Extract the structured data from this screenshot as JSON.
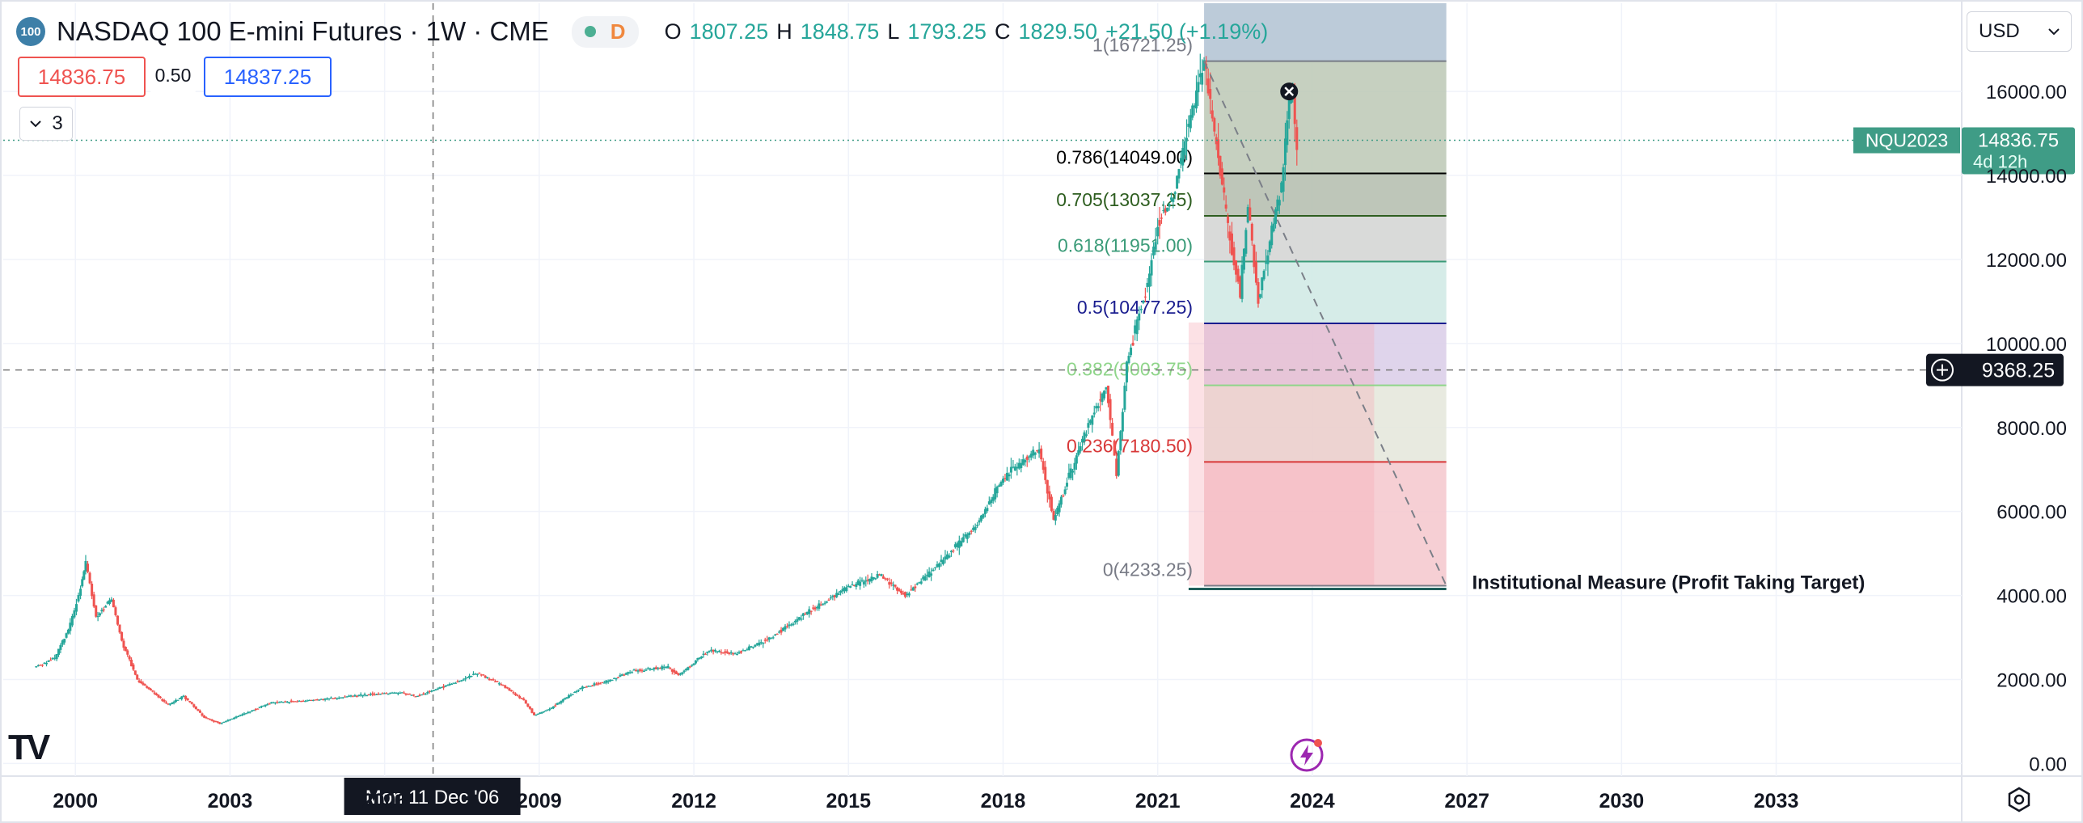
{
  "header": {
    "symbol_badge": "100",
    "title": "NASDAQ 100 E-mini Futures · 1W · CME",
    "status_letter": "D",
    "ohlc": {
      "o_label": "O",
      "o_value": "1807.25",
      "h_label": "H",
      "h_value": "1848.75",
      "l_label": "L",
      "l_value": "1793.25",
      "c_label": "C",
      "c_value": "1829.50",
      "change": "+21.50 (+1.19%)"
    }
  },
  "quote": {
    "bid": "14836.75",
    "spread": "0.50",
    "ask": "14837.25"
  },
  "indicator_toggle": {
    "count": "3"
  },
  "currency": "USD",
  "colors": {
    "up": "#26a69a",
    "down": "#ef5350",
    "accent": "#2962ff",
    "price_label": "#3f9c86"
  },
  "chart_data": {
    "type": "candlestick",
    "interval": "1W",
    "y_axis": {
      "ticks": [
        "16000.00",
        "14000.00",
        "12000.00",
        "10000.00",
        "8000.00",
        "6000.00",
        "4000.00",
        "2000.00",
        "0.00"
      ],
      "range": [
        -300,
        18100
      ]
    },
    "x_axis": {
      "ticks": [
        "2000",
        "2003",
        "2006",
        "2009",
        "2012",
        "2015",
        "2018",
        "2021",
        "2024",
        "2027",
        "2030",
        "2033"
      ],
      "range": [
        1998.6,
        2036.6
      ]
    },
    "price_path": [
      [
        1999.2,
        2300
      ],
      [
        1999.6,
        2500
      ],
      [
        1999.9,
        3300
      ],
      [
        2000.1,
        4200
      ],
      [
        2000.2,
        4800
      ],
      [
        2000.4,
        3500
      ],
      [
        2000.7,
        3900
      ],
      [
        2000.9,
        2900
      ],
      [
        2001.2,
        2000
      ],
      [
        2001.5,
        1700
      ],
      [
        2001.8,
        1400
      ],
      [
        2002.1,
        1600
      ],
      [
        2002.5,
        1100
      ],
      [
        2002.8,
        950
      ],
      [
        2003.2,
        1150
      ],
      [
        2003.8,
        1450
      ],
      [
        2004.5,
        1500
      ],
      [
        2005.5,
        1620
      ],
      [
        2006.3,
        1700
      ],
      [
        2006.6,
        1600
      ],
      [
        2007.3,
        1900
      ],
      [
        2007.8,
        2150
      ],
      [
        2008.3,
        1850
      ],
      [
        2008.7,
        1500
      ],
      [
        2008.9,
        1150
      ],
      [
        2009.2,
        1300
      ],
      [
        2009.8,
        1800
      ],
      [
        2010.3,
        1950
      ],
      [
        2010.8,
        2200
      ],
      [
        2011.5,
        2300
      ],
      [
        2011.7,
        2100
      ],
      [
        2012.3,
        2700
      ],
      [
        2012.8,
        2600
      ],
      [
        2013.5,
        3000
      ],
      [
        2014.2,
        3600
      ],
      [
        2015.0,
        4200
      ],
      [
        2015.6,
        4500
      ],
      [
        2016.1,
        4000
      ],
      [
        2016.8,
        4800
      ],
      [
        2017.5,
        5700
      ],
      [
        2018.0,
        6800
      ],
      [
        2018.7,
        7500
      ],
      [
        2018.98,
        5800
      ],
      [
        2019.5,
        7600
      ],
      [
        2020.0,
        9000
      ],
      [
        2020.2,
        6900
      ],
      [
        2020.4,
        9500
      ],
      [
        2020.8,
        11500
      ],
      [
        2021.0,
        12800
      ],
      [
        2021.3,
        13500
      ],
      [
        2021.6,
        15200
      ],
      [
        2021.9,
        16721
      ],
      [
        2022.1,
        15000
      ],
      [
        2022.4,
        12500
      ],
      [
        2022.6,
        11200
      ],
      [
        2022.75,
        13300
      ],
      [
        2022.95,
        11000
      ],
      [
        2023.1,
        12000
      ],
      [
        2023.4,
        13800
      ],
      [
        2023.55,
        15700
      ],
      [
        2023.62,
        15900
      ],
      [
        2023.7,
        14836
      ]
    ],
    "last_price": {
      "symbol": "NQU2023",
      "value": "14836.75",
      "countdown": "4d 12h"
    },
    "crosshair": {
      "price": "9368.25",
      "date_label": "Mon 11 Dec '06",
      "x": 2006.94,
      "y": 9368.25
    },
    "fibonacci": {
      "levels": [
        {
          "ratio": "1",
          "price": 16721.25,
          "label": "1(16721.25)",
          "color": "#787b86"
        },
        {
          "ratio": "0.786",
          "price": 14049.0,
          "label": "0.786(14049.00)",
          "color": "#000000"
        },
        {
          "ratio": "0.705",
          "price": 13037.25,
          "label": "0.705(13037.25)",
          "color": "#2e5e20"
        },
        {
          "ratio": "0.618",
          "price": 11951.0,
          "label": "0.618(11951.00)",
          "color": "#3a9b78"
        },
        {
          "ratio": "0.5",
          "price": 10477.25,
          "label": "0.5(10477.25)",
          "color": "#1a1d8f"
        },
        {
          "ratio": "0.382",
          "price": 9003.75,
          "label": "0.382(9003.75)",
          "color": "#8fd58a"
        },
        {
          "ratio": "0.236",
          "price": 7180.5,
          "label": "0.236(7180.50)",
          "color": "#d83838"
        },
        {
          "ratio": "0",
          "price": 4233.25,
          "label": "0(4233.25)",
          "color": "#787b86"
        }
      ],
      "x_start": 2021.9,
      "x_end": 2026.6
    },
    "annotation": "Institutional Measure (Profit Taking Target)",
    "trend_line": {
      "from": [
        2021.9,
        16721
      ],
      "to": [
        2026.6,
        4233
      ]
    }
  }
}
